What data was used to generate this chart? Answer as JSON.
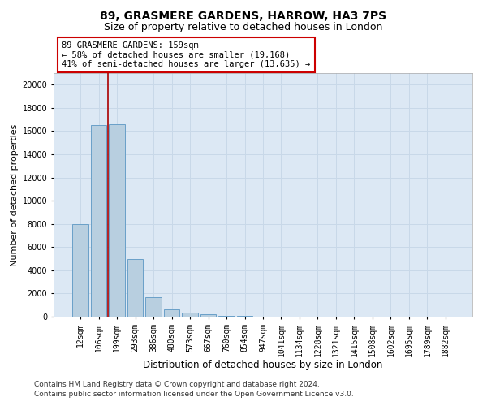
{
  "title1": "89, GRASMERE GARDENS, HARROW, HA3 7PS",
  "title2": "Size of property relative to detached houses in London",
  "xlabel": "Distribution of detached houses by size in London",
  "ylabel": "Number of detached properties",
  "categories": [
    "12sqm",
    "106sqm",
    "199sqm",
    "293sqm",
    "386sqm",
    "480sqm",
    "573sqm",
    "667sqm",
    "760sqm",
    "854sqm",
    "947sqm",
    "1041sqm",
    "1134sqm",
    "1228sqm",
    "1321sqm",
    "1415sqm",
    "1508sqm",
    "1602sqm",
    "1695sqm",
    "1789sqm",
    "1882sqm"
  ],
  "bar_values": [
    8000,
    16500,
    16600,
    5000,
    1700,
    600,
    380,
    200,
    100,
    50,
    20,
    0,
    0,
    0,
    0,
    0,
    0,
    0,
    0,
    0,
    0
  ],
  "bar_color": "#b8cfe0",
  "bar_edge_color": "#6aa0c8",
  "grid_color": "#c8d8e8",
  "property_line_color": "#aa0000",
  "annotation_text": "89 GRASMERE GARDENS: 159sqm\n← 58% of detached houses are smaller (19,168)\n41% of semi-detached houses are larger (13,635) →",
  "annotation_box_color": "#ffffff",
  "annotation_box_edge": "#cc0000",
  "ylim_max": 21000,
  "ytick_step": 2000,
  "footnote1": "Contains HM Land Registry data © Crown copyright and database right 2024.",
  "footnote2": "Contains public sector information licensed under the Open Government Licence v3.0.",
  "bg_color": "#dce8f4",
  "title1_fontsize": 10,
  "title2_fontsize": 9,
  "xlabel_fontsize": 8.5,
  "ylabel_fontsize": 8,
  "tick_fontsize": 7,
  "annot_fontsize": 7.5,
  "footnote_fontsize": 6.5
}
